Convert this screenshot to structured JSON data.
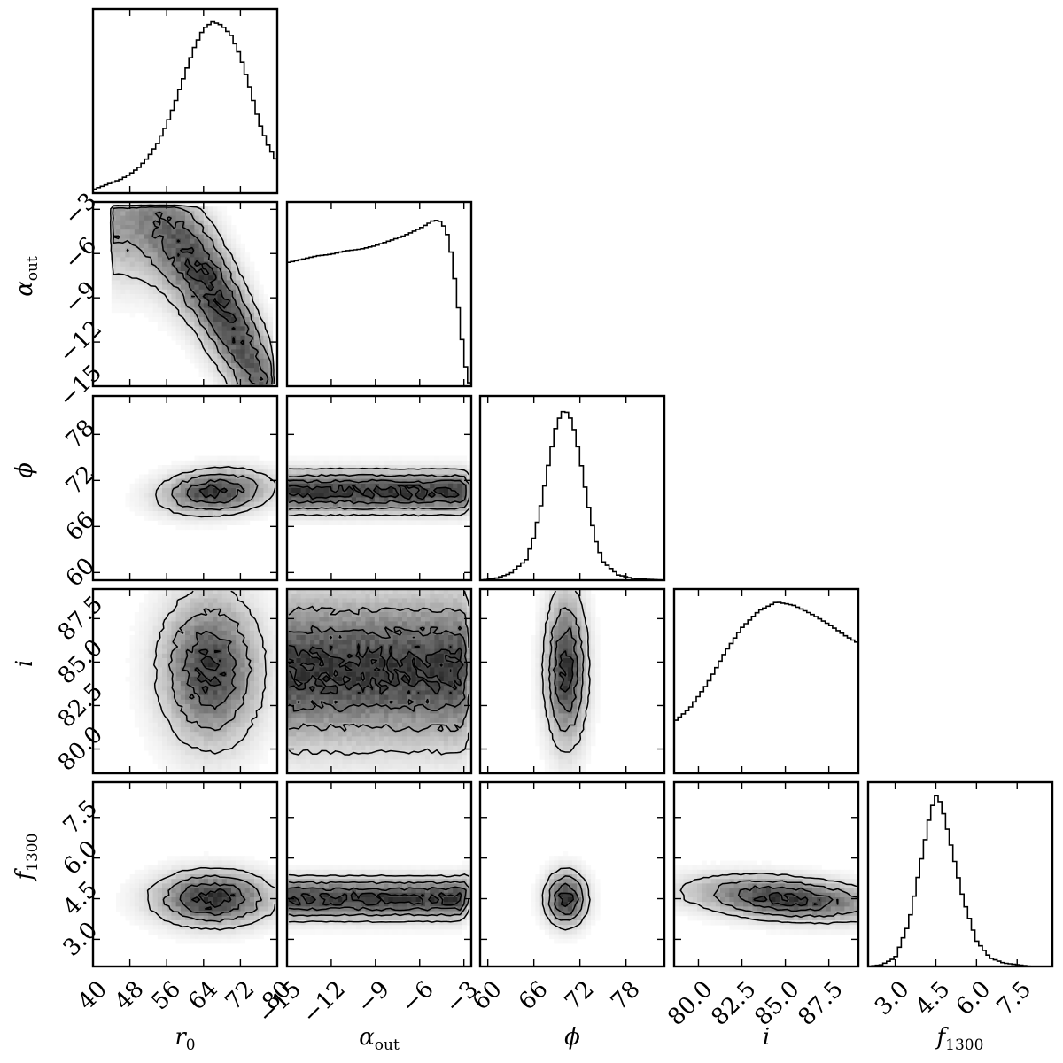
{
  "chart_data": {
    "type": "corner",
    "grid": false,
    "parameters": [
      {
        "id": "r0",
        "label_main": "r",
        "label_sub": "0",
        "range": [
          40,
          80
        ],
        "ticks": [
          40,
          48,
          56,
          64,
          72,
          80
        ],
        "tick_labels": [
          "40",
          "48",
          "56",
          "64",
          "72",
          "80"
        ],
        "mode": 66.5
      },
      {
        "id": "alpha_out",
        "label_main": "α",
        "label_sub": "out",
        "range": [
          -15,
          -2.5
        ],
        "ticks": [
          -15,
          -12,
          -9,
          -6,
          -3
        ],
        "tick_labels": [
          "−15",
          "−12",
          "−9",
          "−6",
          "−3"
        ],
        "mode": -4.8
      },
      {
        "id": "phi",
        "label_main": "ϕ",
        "label_sub": "",
        "range": [
          59,
          83
        ],
        "ticks": [
          60,
          66,
          72,
          78
        ],
        "tick_labels": [
          "60",
          "66",
          "72",
          "78"
        ],
        "mode": 70.2
      },
      {
        "id": "i",
        "label_main": "i",
        "label_sub": "",
        "range": [
          78.6,
          89.2
        ],
        "ticks": [
          80.0,
          82.5,
          85.0,
          87.5
        ],
        "tick_labels": [
          "80.0",
          "82.5",
          "85.0",
          "87.5"
        ],
        "mode": 84.5
      },
      {
        "id": "f1300",
        "label_main": "f",
        "label_sub": "1300",
        "range": [
          2.0,
          8.8
        ],
        "ticks": [
          3.0,
          4.5,
          6.0,
          7.5
        ],
        "tick_labels": [
          "3.0",
          "4.5",
          "6.0",
          "7.5"
        ],
        "mode": 4.5
      }
    ],
    "histograms": [
      {
        "param": "r0",
        "x": [
          40,
          42,
          44,
          46,
          48,
          50,
          52,
          54,
          56,
          58,
          60,
          62,
          64,
          66,
          68,
          70,
          72,
          74,
          76,
          78,
          80
        ],
        "density": [
          0.02,
          0.04,
          0.06,
          0.08,
          0.11,
          0.15,
          0.21,
          0.29,
          0.4,
          0.54,
          0.7,
          0.85,
          0.96,
          1.0,
          0.98,
          0.92,
          0.8,
          0.62,
          0.42,
          0.28,
          0.18
        ]
      },
      {
        "param": "alpha_out",
        "x": [
          -15,
          -14,
          -13,
          -12,
          -11,
          -10,
          -9,
          -8,
          -7,
          -6,
          -5,
          -4.5,
          -4,
          -3.5,
          -3,
          -2.7
        ],
        "density": [
          0.72,
          0.74,
          0.76,
          0.77,
          0.79,
          0.8,
          0.82,
          0.85,
          0.88,
          0.92,
          0.97,
          0.96,
          0.86,
          0.55,
          0.18,
          0.02
        ]
      },
      {
        "param": "phi",
        "x": [
          59,
          61,
          63,
          65,
          66,
          67,
          68,
          69,
          70,
          71,
          72,
          73,
          74,
          75,
          77,
          79,
          83
        ],
        "density": [
          0.0,
          0.01,
          0.04,
          0.12,
          0.25,
          0.45,
          0.7,
          0.92,
          1.0,
          0.93,
          0.72,
          0.46,
          0.24,
          0.11,
          0.03,
          0.01,
          0.0
        ]
      },
      {
        "param": "i",
        "x": [
          78.6,
          79.5,
          80.5,
          81.5,
          82.5,
          83.5,
          84.5,
          85.5,
          86.5,
          87.5,
          88.5,
          89.2
        ],
        "density": [
          0.3,
          0.38,
          0.52,
          0.7,
          0.85,
          0.95,
          1.0,
          0.98,
          0.93,
          0.87,
          0.8,
          0.76
        ]
      },
      {
        "param": "f1300",
        "x": [
          2.0,
          2.5,
          3.0,
          3.5,
          4.0,
          4.3,
          4.5,
          4.7,
          5.0,
          5.5,
          6.0,
          6.5,
          7.0,
          8.0,
          8.8
        ],
        "density": [
          0.0,
          0.01,
          0.05,
          0.25,
          0.65,
          0.9,
          1.0,
          0.95,
          0.75,
          0.4,
          0.15,
          0.05,
          0.02,
          0.0,
          0.0
        ]
      }
    ],
    "joint_distributions": [
      {
        "x": "r0",
        "y": "alpha_out",
        "shape": "banana",
        "levels": 4
      },
      {
        "x": "r0",
        "y": "phi",
        "mean": [
          66.5,
          70.5
        ],
        "sd": [
          6.5,
          1.6
        ],
        "rho": 0.15,
        "levels": 4
      },
      {
        "x": "alpha_out",
        "y": "phi",
        "mean": [
          -8.5,
          70.5
        ],
        "sd": [
          4.0,
          1.5
        ],
        "rho": 0.0,
        "uniform_x": [
          -15,
          -3.3
        ],
        "levels": 4
      },
      {
        "x": "phi",
        "y": "i",
        "mean": [
          70.2,
          84.6
        ],
        "sd": [
          1.5,
          2.4
        ],
        "rho": 0.0,
        "levels": 4
      },
      {
        "x": "r0",
        "y": "i",
        "mean": [
          65.5,
          84.6
        ],
        "sd": [
          6.0,
          2.4
        ],
        "rho": 0.0,
        "levels": 4
      },
      {
        "x": "alpha_out",
        "y": "i",
        "mean": [
          -8.5,
          84.6
        ],
        "sd": [
          4.0,
          2.4
        ],
        "rho": 0.0,
        "uniform_x": [
          -15,
          -3.3
        ],
        "levels": 4
      },
      {
        "x": "r0",
        "y": "f1300",
        "mean": [
          66.0,
          4.5
        ],
        "sd": [
          7.0,
          0.55
        ],
        "rho": 0.0,
        "levels": 4
      },
      {
        "x": "alpha_out",
        "y": "f1300",
        "mean": [
          -8.5,
          4.5
        ],
        "sd": [
          4.0,
          0.45
        ],
        "rho": 0.35,
        "uniform_x": [
          -15,
          -3.3
        ],
        "levels": 4
      },
      {
        "x": "phi",
        "y": "f1300",
        "mean": [
          70.2,
          4.5
        ],
        "sd": [
          1.5,
          0.55
        ],
        "rho": 0.0,
        "levels": 4
      },
      {
        "x": "i",
        "y": "f1300",
        "mean": [
          85.0,
          4.5
        ],
        "sd": [
          3.0,
          0.45
        ],
        "rho": -0.3,
        "levels": 4
      }
    ]
  }
}
